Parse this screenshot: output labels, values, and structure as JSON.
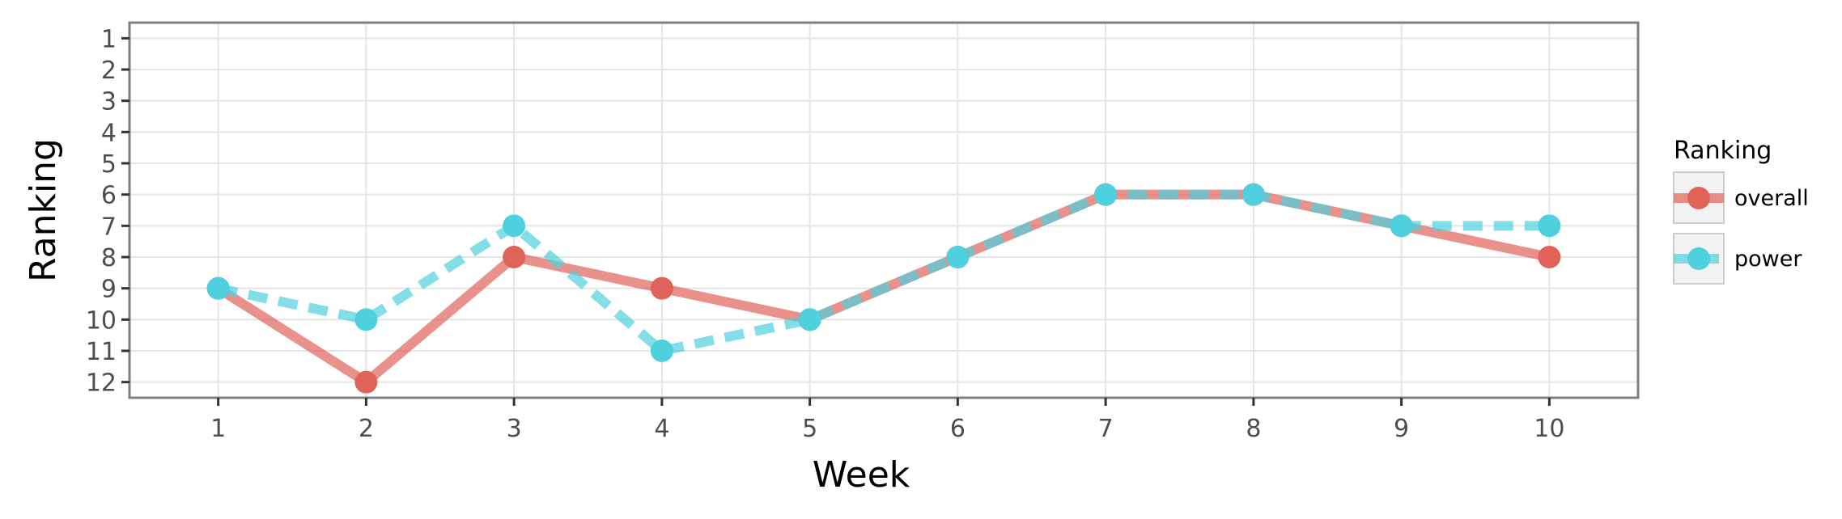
{
  "chart_data": {
    "type": "line",
    "title": "",
    "xlabel": "Week",
    "ylabel": "Ranking",
    "x": [
      1,
      2,
      3,
      4,
      5,
      6,
      7,
      8,
      9,
      10
    ],
    "x_tick_labels": [
      "1",
      "2",
      "3",
      "4",
      "5",
      "6",
      "7",
      "8",
      "9",
      "10"
    ],
    "y_tick_labels": [
      "1",
      "2",
      "3",
      "4",
      "5",
      "6",
      "7",
      "8",
      "9",
      "10",
      "11",
      "12"
    ],
    "xlim": [
      0.4,
      10.6
    ],
    "ylim": [
      0.5,
      12.5
    ],
    "y_reversed": true,
    "grid": true,
    "legend": {
      "title": "Ranking",
      "position": "right"
    },
    "series": [
      {
        "name": "overall",
        "values": [
          9,
          12,
          8,
          9,
          10,
          8,
          6,
          6,
          7,
          8
        ],
        "color": "#e0635a",
        "line_style": "solid"
      },
      {
        "name": "power",
        "values": [
          9,
          10,
          7,
          11,
          10,
          8,
          6,
          6,
          7,
          7
        ],
        "color": "#4fd0de",
        "line_style": "dashed"
      }
    ]
  }
}
